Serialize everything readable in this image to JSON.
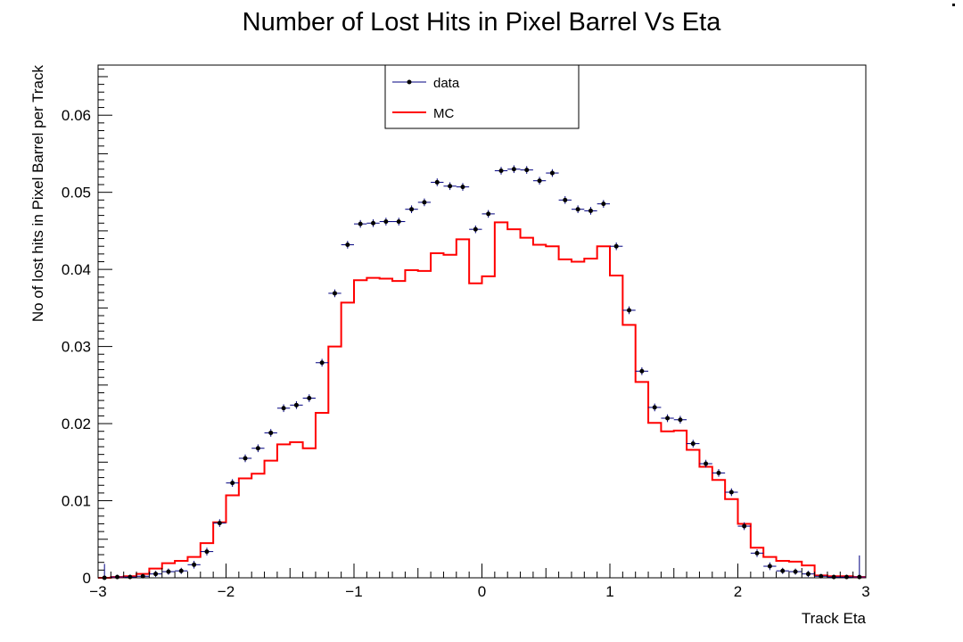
{
  "chart_data": {
    "type": "histogram",
    "title": "Number of Lost Hits in Pixel Barrel Vs Eta",
    "xlabel": "Track Eta",
    "ylabel": "No of lost hits in Pixel Barrel per Track",
    "xlim": [
      -3,
      3
    ],
    "ylim": [
      0,
      0.0665
    ],
    "x_ticks": [
      "−3",
      "−2",
      "−1",
      "0",
      "1",
      "2",
      "3"
    ],
    "y_ticks": [
      "0",
      "0.01",
      "0.02",
      "0.03",
      "0.04",
      "0.05",
      "0.06"
    ],
    "grid": false,
    "legend_position": "top-center",
    "bin_width": 0.1,
    "x": [
      -2.95,
      -2.85,
      -2.75,
      -2.65,
      -2.55,
      -2.45,
      -2.35,
      -2.25,
      -2.15,
      -2.05,
      -1.95,
      -1.85,
      -1.75,
      -1.65,
      -1.55,
      -1.45,
      -1.35,
      -1.25,
      -1.15,
      -1.05,
      -0.95,
      -0.85,
      -0.75,
      -0.65,
      -0.55,
      -0.45,
      -0.35,
      -0.25,
      -0.15,
      -0.05,
      0.05,
      0.15,
      0.25,
      0.35,
      0.45,
      0.55,
      0.65,
      0.75,
      0.85,
      0.95,
      1.05,
      1.15,
      1.25,
      1.35,
      1.45,
      1.55,
      1.65,
      1.75,
      1.85,
      1.95,
      2.05,
      2.15,
      2.25,
      2.35,
      2.45,
      2.55,
      2.65,
      2.75,
      2.85,
      2.95
    ],
    "series": [
      {
        "name": "data",
        "color": "#000080",
        "style": "points",
        "values": [
          0.0,
          0.0001,
          0.0001,
          0.0002,
          0.0005,
          0.0008,
          0.0009,
          0.0017,
          0.0034,
          0.0071,
          0.0123,
          0.0155,
          0.0168,
          0.0188,
          0.022,
          0.0224,
          0.0233,
          0.0279,
          0.0369,
          0.0432,
          0.0459,
          0.046,
          0.0462,
          0.0462,
          0.0478,
          0.0487,
          0.0513,
          0.0508,
          0.0507,
          0.0452,
          0.0472,
          0.0528,
          0.053,
          0.0529,
          0.0515,
          0.0525,
          0.049,
          0.0478,
          0.0476,
          0.0485,
          0.043,
          0.0347,
          0.0268,
          0.0221,
          0.0207,
          0.0205,
          0.0174,
          0.0148,
          0.0136,
          0.0111,
          0.0067,
          0.0032,
          0.0015,
          0.0009,
          0.0008,
          0.0005,
          0.0002,
          0.0001,
          0.0001,
          0.0001
        ],
        "errors": [
          0.0018,
          0.0003,
          0.0003,
          0.0003,
          0.0004,
          0.0004,
          0.0004,
          0.0005,
          0.0005,
          0.0005,
          0.0005,
          0.0005,
          0.0005,
          0.0005,
          0.0005,
          0.0005,
          0.0005,
          0.0005,
          0.0005,
          0.0005,
          0.0005,
          0.0005,
          0.0005,
          0.0005,
          0.0005,
          0.0005,
          0.0005,
          0.0005,
          0.0005,
          0.0005,
          0.0005,
          0.0005,
          0.0005,
          0.0005,
          0.0005,
          0.0005,
          0.0005,
          0.0005,
          0.0005,
          0.0005,
          0.0005,
          0.0005,
          0.0005,
          0.0005,
          0.0005,
          0.0005,
          0.0005,
          0.0005,
          0.0005,
          0.0005,
          0.0005,
          0.0005,
          0.0005,
          0.0004,
          0.0004,
          0.0004,
          0.0003,
          0.0003,
          0.0003,
          0.0028
        ]
      },
      {
        "name": "MC",
        "color": "#ff0000",
        "style": "step",
        "values": [
          0.0,
          0.0001,
          0.0002,
          0.0005,
          0.0012,
          0.0019,
          0.0022,
          0.0027,
          0.0045,
          0.0072,
          0.0107,
          0.0129,
          0.0135,
          0.0152,
          0.0173,
          0.0176,
          0.0168,
          0.0214,
          0.03,
          0.0357,
          0.0386,
          0.0389,
          0.0388,
          0.0385,
          0.0399,
          0.0398,
          0.0421,
          0.0419,
          0.0439,
          0.0382,
          0.0391,
          0.0461,
          0.0452,
          0.0441,
          0.0432,
          0.043,
          0.0413,
          0.041,
          0.0414,
          0.043,
          0.0392,
          0.0328,
          0.0254,
          0.0201,
          0.019,
          0.0191,
          0.0166,
          0.0144,
          0.0127,
          0.0102,
          0.007,
          0.0039,
          0.0027,
          0.0022,
          0.0021,
          0.0016,
          0.0003,
          0.0002,
          0.0002,
          0.0001
        ]
      }
    ]
  }
}
